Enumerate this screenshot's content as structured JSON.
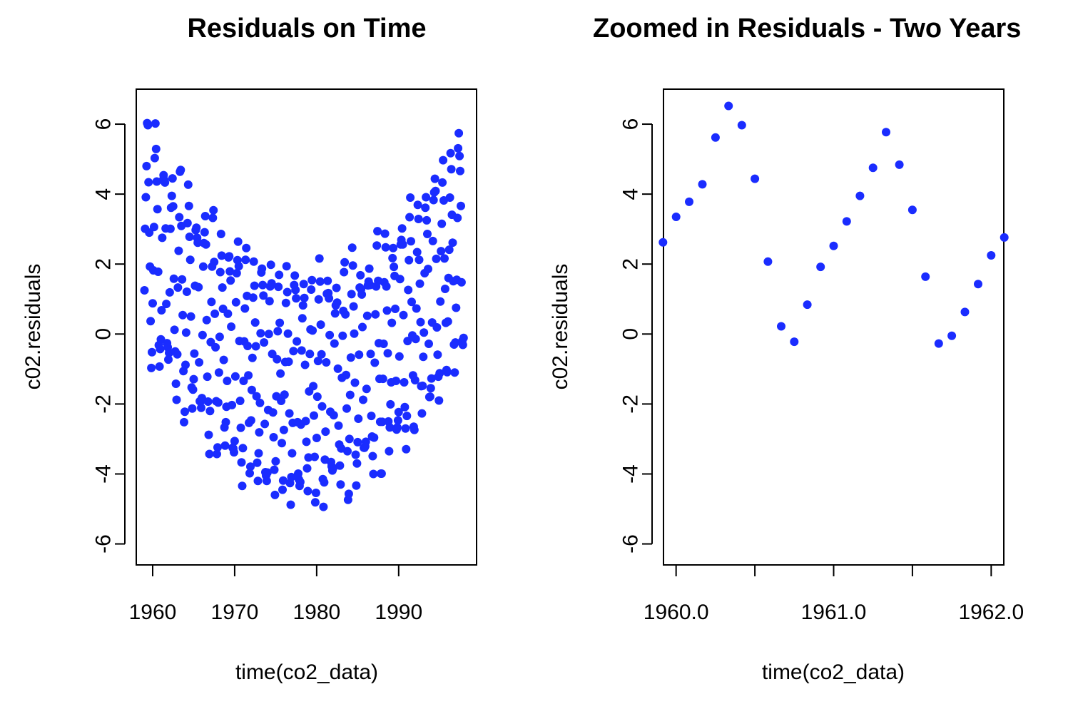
{
  "colors": {
    "point": "#1a2cff",
    "axis": "#000000",
    "background": "#ffffff"
  },
  "chart_data": [
    {
      "type": "scatter",
      "title": "Residuals on Time",
      "xlabel": "time(co2_data)",
      "ylabel": "c02.residuals",
      "xlim": [
        1958.0,
        1999.5
      ],
      "ylim": [
        -6.6,
        7.0
      ],
      "xticks": [
        1960,
        1970,
        1980,
        1990
      ],
      "xtick_labels": [
        "1960",
        "1970",
        "1980",
        "1990"
      ],
      "yticks": [
        -6,
        -4,
        -2,
        0,
        2,
        4,
        6
      ],
      "ytick_labels": [
        "-6",
        "-4",
        "-2",
        "0",
        "2",
        "4",
        "6"
      ],
      "grid": false,
      "legend": "none",
      "series": [
        {
          "generated": "monthly",
          "x_start": 1959.0,
          "n_points": 468,
          "y": []
        }
      ]
    },
    {
      "type": "scatter",
      "title": "Zoomed in Residuals - Two Years",
      "xlabel": "time(co2_data)",
      "ylabel": "c02.residuals",
      "xlim": [
        1959.92,
        1962.08
      ],
      "ylim": [
        -6.6,
        7.0
      ],
      "xticks": [
        1960.0,
        1960.5,
        1961.0,
        1961.5,
        1962.0
      ],
      "xtick_labels": [
        "1960.0",
        "",
        "1961.0",
        "",
        "1962.0"
      ],
      "yticks": [
        -6,
        -4,
        -2,
        0,
        2,
        4,
        6
      ],
      "ytick_labels": [
        "-6",
        "-4",
        "-2",
        "0",
        "2",
        "4",
        "6"
      ],
      "grid": false,
      "legend": "none",
      "series": [
        {
          "x": [
            1959.917,
            1960.0,
            1960.083,
            1960.167,
            1960.25,
            1960.333,
            1960.417,
            1960.5,
            1960.583,
            1960.667,
            1960.75,
            1960.833,
            1960.917,
            1961.0,
            1961.083,
            1961.167,
            1961.25,
            1961.333,
            1961.417,
            1961.5,
            1961.583,
            1961.667,
            1961.75,
            1961.833,
            1961.917,
            1962.0,
            1962.083
          ],
          "y": [
            2.62,
            3.35,
            3.78,
            4.28,
            5.62,
            6.52,
            5.97,
            4.44,
            2.07,
            0.22,
            -0.22,
            0.84,
            1.92,
            2.52,
            3.22,
            3.95,
            4.75,
            5.77,
            4.84,
            3.55,
            1.64,
            -0.27,
            -0.05,
            0.63,
            1.43,
            2.25,
            2.76
          ]
        }
      ]
    }
  ]
}
